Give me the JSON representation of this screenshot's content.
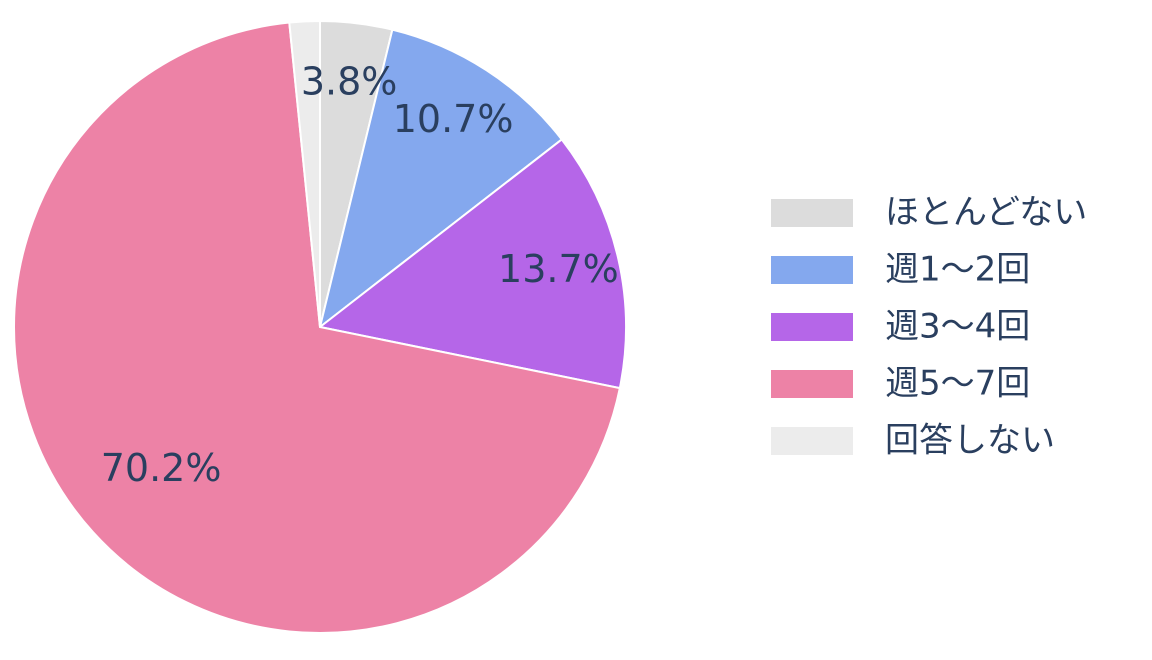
{
  "chart_data": {
    "type": "pie",
    "categories": [
      "ほとんどない",
      "週1〜2回",
      "週3〜4回",
      "週5〜7回",
      "回答しない"
    ],
    "values": [
      3.8,
      10.7,
      13.7,
      70.2,
      1.6
    ],
    "value_labels": [
      "3.8%",
      "10.7%",
      "13.7%",
      "70.2%",
      null
    ],
    "colors": [
      "#dcdcdc",
      "#84a8ee",
      "#b566e8",
      "#ed82a6",
      "#ececec"
    ],
    "direction": "clockwise",
    "legend": "right"
  }
}
